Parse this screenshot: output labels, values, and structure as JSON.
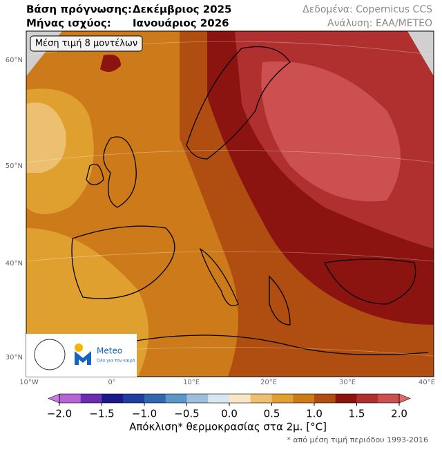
{
  "header": {
    "base_label": "Βάση πρόγνωσης:",
    "base_value": "Δεκέμβριος 2025",
    "valid_label": "Μήνας ισχύος:",
    "valid_value": "Ιανουάριος 2026",
    "data_source": "Δεδομένα: Copernicus CCS",
    "analysis": "Ανάλυση: ΕΑΑ/METEO"
  },
  "map": {
    "badge": "Μέση τιμή 8 μοντέλων",
    "lat_labels": [
      "60°N",
      "50°N",
      "40°N",
      "30°N"
    ],
    "lon_labels": [
      "10°W",
      "0°",
      "10°E",
      "20°E",
      "30°E",
      "40°E"
    ]
  },
  "logo": {
    "name": "Meteo",
    "tagline": "Όλα για τον καιρό"
  },
  "colorbar": {
    "colors": [
      "#b763d6",
      "#6a2cb0",
      "#1a1a8c",
      "#1f3fa0",
      "#3366b0",
      "#5a96c8",
      "#9cc0dc",
      "#d8e6f0",
      "#f8e6c4",
      "#ecc070",
      "#e0a030",
      "#cc7a1a",
      "#b04d10",
      "#8c1410",
      "#b03030",
      "#cc5050"
    ],
    "extend_colors": [
      "#c77ae6",
      "#d86a6a"
    ],
    "ticks": [
      "−2.0",
      "−1.5",
      "−1.0",
      "−0.5",
      "0.0",
      "0.5",
      "1.0",
      "1.5",
      "2.0"
    ],
    "label": "Απόκλιση* θερμοκρασίας στα 2μ. [°C]",
    "footnote": "* από μέση τιμή περιόδου 1993-2016"
  }
}
